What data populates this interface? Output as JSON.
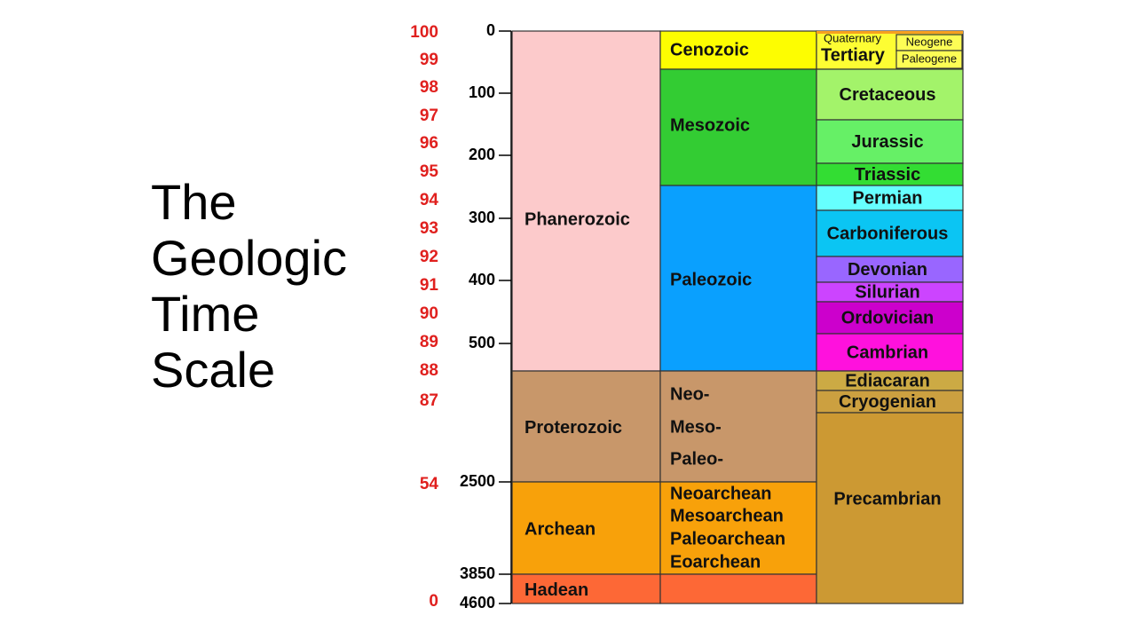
{
  "title_lines": [
    "The",
    "Geologic",
    "Time",
    "Scale"
  ],
  "percent_scale": [
    "100",
    "99",
    "98",
    "97",
    "96",
    "95",
    "94",
    "93",
    "92",
    "91",
    "90",
    "89",
    "88",
    "87",
    "54",
    "0"
  ],
  "million_years_ticks": [
    "0",
    "100",
    "200",
    "300",
    "400",
    "500",
    "2500",
    "3850",
    "4600"
  ],
  "eons": [
    "Phanerozoic",
    "Proterozoic",
    "Archean",
    "Hadean"
  ],
  "eras": [
    [
      "Cenozoic"
    ],
    [
      "Mesozoic"
    ],
    [
      "Paleozoic"
    ],
    [
      "Neo-",
      "Meso-",
      "Paleo-"
    ],
    [
      "Neoarchean",
      "Mesoarchean",
      "Paleoarchean",
      "Eoarchean"
    ]
  ],
  "cenozoic_periods": {
    "top": "Quaternary",
    "main": "Tertiary",
    "upper": "Neogene",
    "lower": "Paleogene"
  },
  "periods": [
    "Cretaceous",
    "Jurassic",
    "Triassic",
    "Permian",
    "Carboniferous",
    "Devonian",
    "Silurian",
    "Ordovician",
    "Cambrian",
    "Ediacaran",
    "Cryogenian",
    "Precambrian"
  ]
}
